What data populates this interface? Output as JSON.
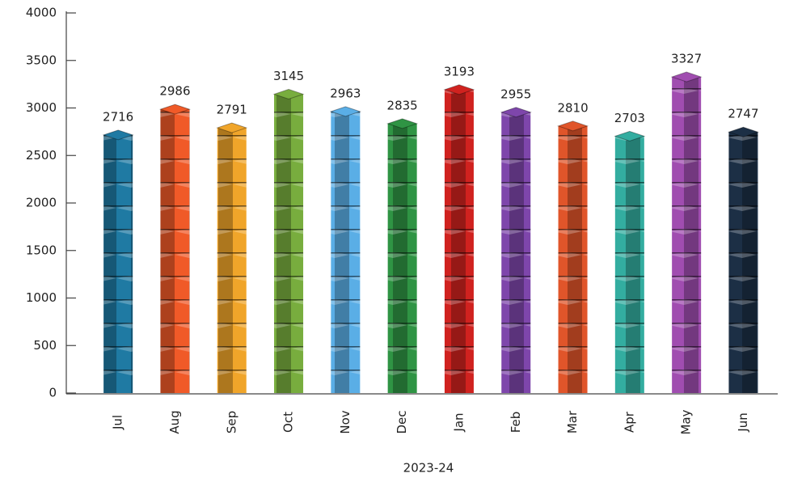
{
  "chart_data": {
    "type": "bar",
    "xlabel": "2023-24",
    "categories": [
      "Jul",
      "Aug",
      "Sep",
      "Oct",
      "Nov",
      "Dec",
      "Jan",
      "Feb",
      "Mar",
      "Apr",
      "May",
      "Jun"
    ],
    "values": [
      2716,
      2986,
      2791,
      3145,
      2963,
      2835,
      3193,
      2955,
      2810,
      2703,
      3327,
      2747
    ],
    "colors": [
      "#1f7aa3",
      "#f05a28",
      "#f0a52a",
      "#78ad3e",
      "#5aaee6",
      "#2f9444",
      "#d0221f",
      "#7e46ab",
      "#e0552a",
      "#33ada0",
      "#a04db0",
      "#1c2f45"
    ],
    "ylim": [
      0,
      4000
    ],
    "yticks": [
      0,
      500,
      1000,
      1500,
      2000,
      2500,
      3000,
      3500,
      4000
    ],
    "grid": false
  }
}
